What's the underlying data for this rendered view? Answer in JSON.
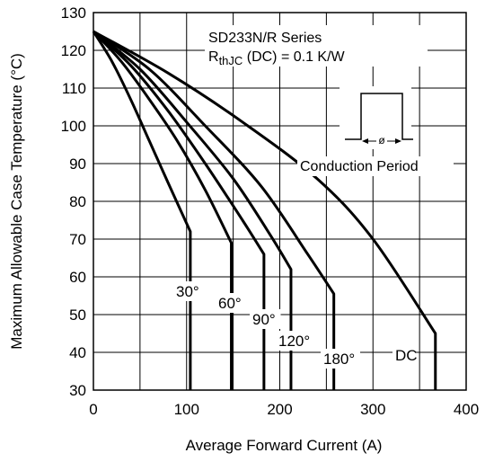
{
  "chart_data": {
    "type": "line",
    "title": "SD233N/R Series",
    "annotation_rth_main": "R",
    "annotation_rth_sub": "thJC",
    "annotation_rth_rest": " (DC) = 0.1 K/W",
    "annotation_conduction": "Conduction Period",
    "annotation_phi": "ø",
    "xlabel": "Average Forward Current (A)",
    "ylabel": "Maximum Allowable Case Temperature (°C)",
    "xlim": [
      0,
      400
    ],
    "ylim": [
      30,
      130
    ],
    "xticks": [
      0,
      100,
      200,
      300,
      400
    ],
    "yticks": [
      30,
      40,
      50,
      60,
      70,
      80,
      90,
      100,
      110,
      120,
      130
    ],
    "grid": true,
    "series": [
      {
        "name": "30°",
        "x": [
          0,
          20,
          40,
          60,
          80,
          104,
          104,
          104
        ],
        "y": [
          125,
          117,
          107,
          96,
          85,
          72,
          72,
          30
        ]
      },
      {
        "name": "60°",
        "x": [
          0,
          30,
          60,
          90,
          120,
          148,
          148
        ],
        "y": [
          125,
          117,
          107,
          96,
          83,
          69,
          30
        ]
      },
      {
        "name": "90°",
        "x": [
          0,
          40,
          80,
          120,
          160,
          183,
          183
        ],
        "y": [
          125,
          116,
          104,
          90,
          75,
          66,
          30
        ]
      },
      {
        "name": "120°",
        "x": [
          0,
          50,
          100,
          150,
          190,
          212,
          212
        ],
        "y": [
          125,
          115,
          101,
          86,
          71,
          62,
          30
        ]
      },
      {
        "name": "180°",
        "x": [
          0,
          60,
          120,
          180,
          230,
          258,
          258
        ],
        "y": [
          125,
          115,
          100,
          84,
          66,
          55.5,
          30
        ]
      },
      {
        "name": "DC",
        "x": [
          0,
          80,
          160,
          240,
          300,
          367,
          367
        ],
        "y": [
          125,
          114,
          101,
          86,
          70,
          45,
          30
        ]
      }
    ]
  }
}
